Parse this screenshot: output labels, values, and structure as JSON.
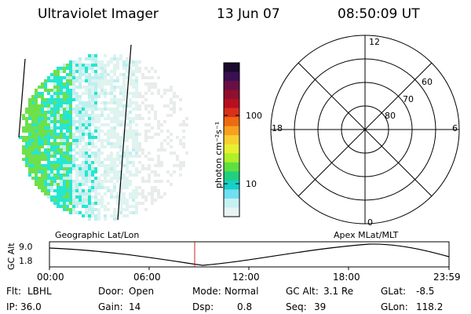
{
  "header": {
    "instrument": "Ultraviolet Imager",
    "date": "13 Jun 07",
    "time": "08:50:09 UT"
  },
  "image_panel": {
    "colors": {
      "green": "#6ee04a",
      "cyan": "#26e6d0",
      "light_cyan": "#bfeff0",
      "pale": "#dff3ef",
      "gray": "#e8ecea"
    }
  },
  "colorbar": {
    "unit_label": "photon cm⁻²s⁻¹",
    "ticks": [
      "100",
      "10"
    ],
    "colors": [
      "#1a0a2e",
      "#3a1050",
      "#6a0f45",
      "#8e1030",
      "#b81020",
      "#d8301a",
      "#ee6a10",
      "#f7a020",
      "#f7d030",
      "#e8f030",
      "#b0f028",
      "#60e040",
      "#20d080",
      "#18d0c8",
      "#70e0f0",
      "#c8f0f4",
      "#e6f4f2"
    ]
  },
  "polar": {
    "mlt_top": "12",
    "mlt_left": "18",
    "mlt_right": "6",
    "mlt_bottom": "0",
    "lat_labels": [
      "60",
      "70",
      "80"
    ]
  },
  "timeline": {
    "ylabel": "GC Alt",
    "ytick_top": "9.0",
    "ytick_bottom": "1.8",
    "left_title": "Geographic Lat/Lon",
    "right_title": "Apex MLat/MLT",
    "xticks": [
      "00:00",
      "06:00",
      "12:00",
      "18:00",
      "23:59"
    ],
    "marker_color": "#cc2222"
  },
  "info": {
    "row1": [
      {
        "label": "Flt:",
        "value": "LBHL"
      },
      {
        "label": "Door:",
        "value": "Open"
      },
      {
        "label": "Mode:",
        "value": "Normal"
      },
      {
        "label": "GC Alt:",
        "value": "3.1 Re"
      },
      {
        "label": "GLat:",
        "value": "-8.5"
      }
    ],
    "row2": [
      {
        "label": "IP:",
        "value": "36.0"
      },
      {
        "label": "Gain:",
        "value": "14"
      },
      {
        "label": "Dsp:",
        "value": "0.8"
      },
      {
        "label": "Seq:",
        "value": "39"
      },
      {
        "label": "GLon:",
        "value": "118.2"
      }
    ]
  }
}
